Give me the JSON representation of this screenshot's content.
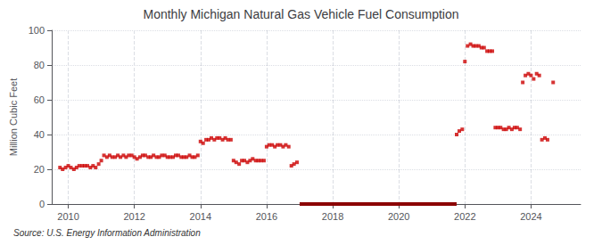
{
  "chart_data": {
    "type": "scatter",
    "title": "Monthly Michigan Natural Gas Vehicle Fuel Consumption",
    "ylabel": "Million Cubic Feet",
    "annotation": "Source: U.S. Energy Information Administration",
    "xlim": [
      2009.5,
      2025.5
    ],
    "xticks": [
      2010,
      2012,
      2014,
      2016,
      2018,
      2020,
      2022,
      2024
    ],
    "ylim": [
      0,
      100
    ],
    "yticks": [
      0,
      20,
      40,
      60,
      80,
      100
    ],
    "grid": true,
    "series": [
      {
        "type": "scatter",
        "color": "#cc0000",
        "marker": "square",
        "x": [
          2009.75,
          2009.83,
          2009.92,
          2010.0,
          2010.08,
          2010.17,
          2010.25,
          2010.33,
          2010.42,
          2010.5,
          2010.58,
          2010.67,
          2010.75,
          2010.83,
          2010.92,
          2011.0,
          2011.08,
          2011.17,
          2011.25,
          2011.33,
          2011.42,
          2011.5,
          2011.58,
          2011.67,
          2011.75,
          2011.83,
          2011.92,
          2012.0,
          2012.08,
          2012.17,
          2012.25,
          2012.33,
          2012.42,
          2012.5,
          2012.58,
          2012.67,
          2012.75,
          2012.83,
          2012.92,
          2013.0,
          2013.08,
          2013.17,
          2013.25,
          2013.33,
          2013.42,
          2013.5,
          2013.58,
          2013.67,
          2013.75,
          2013.83,
          2013.92,
          2014.0,
          2014.08,
          2014.17,
          2014.25,
          2014.33,
          2014.42,
          2014.5,
          2014.58,
          2014.67,
          2014.75,
          2014.83,
          2014.92,
          2015.0,
          2015.08,
          2015.17,
          2015.25,
          2015.33,
          2015.42,
          2015.5,
          2015.58,
          2015.67,
          2015.75,
          2015.83,
          2015.92,
          2016.0,
          2016.08,
          2016.17,
          2016.25,
          2016.33,
          2016.42,
          2016.5,
          2016.58,
          2016.67,
          2016.75,
          2016.83,
          2016.92,
          2021.75,
          2021.83,
          2021.92,
          2022.0,
          2022.08,
          2022.17,
          2022.25,
          2022.33,
          2022.42,
          2022.5,
          2022.58,
          2022.67,
          2022.75,
          2022.83,
          2022.92,
          2023.0,
          2023.08,
          2023.17,
          2023.25,
          2023.33,
          2023.42,
          2023.5,
          2023.58,
          2023.67,
          2023.75,
          2023.83,
          2023.92,
          2024.0,
          2024.08,
          2024.17,
          2024.25,
          2024.33,
          2024.42,
          2024.5,
          2024.67
        ],
        "values": [
          21,
          20,
          21,
          22,
          21,
          20,
          21,
          22,
          22,
          22,
          22,
          21,
          22,
          21,
          23,
          25,
          28,
          27,
          28,
          27,
          27,
          28,
          27,
          28,
          27,
          28,
          28,
          27,
          26,
          27,
          28,
          28,
          27,
          27,
          28,
          27,
          27,
          28,
          28,
          27,
          27,
          27,
          28,
          28,
          27,
          27,
          27,
          28,
          27,
          27,
          28,
          36,
          35,
          37,
          37,
          38,
          37,
          38,
          38,
          37,
          38,
          37,
          37,
          25,
          24,
          23,
          25,
          25,
          24,
          25,
          26,
          25,
          25,
          25,
          25,
          33,
          34,
          34,
          33,
          34,
          34,
          33,
          34,
          33,
          22,
          23,
          24,
          40,
          42,
          43,
          82,
          91,
          92,
          91,
          91,
          91,
          90,
          90,
          88,
          88,
          88,
          44,
          44,
          44,
          43,
          43,
          44,
          43,
          44,
          44,
          43,
          70,
          74,
          75,
          74,
          72,
          75,
          74,
          37,
          38,
          37,
          70
        ]
      },
      {
        "type": "line",
        "color": "#8b0000",
        "x": [
          2017.0,
          2021.75
        ],
        "values": [
          0,
          0
        ]
      }
    ]
  }
}
